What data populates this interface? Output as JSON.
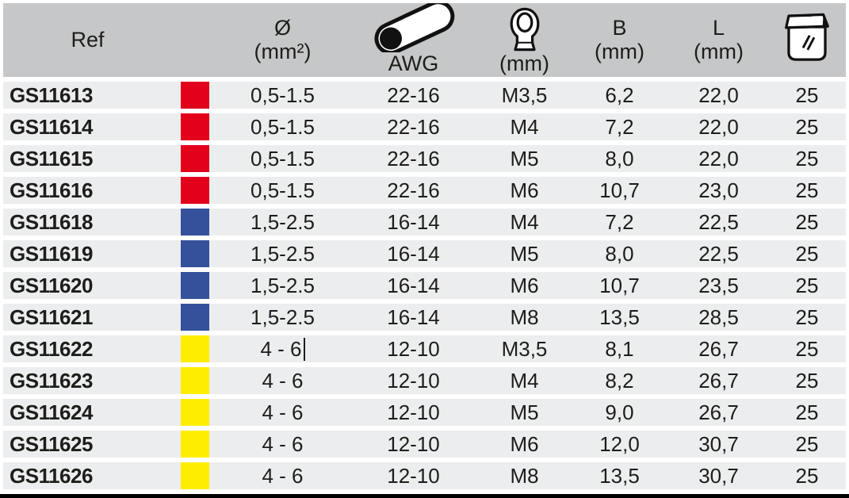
{
  "table": {
    "columns": [
      {
        "key": "ref",
        "label": "Ref"
      },
      {
        "key": "color",
        "label": ""
      },
      {
        "key": "diameter",
        "label_line1": "Ø",
        "label_line2": "(mm²)"
      },
      {
        "key": "awg",
        "icon": "cable-icon",
        "label": "AWG"
      },
      {
        "key": "thread",
        "icon": "ring-terminal-icon",
        "label": "(mm)"
      },
      {
        "key": "b",
        "label_line1": "B",
        "label_line2": "(mm)"
      },
      {
        "key": "l",
        "label_line1": "L",
        "label_line2": "(mm)"
      },
      {
        "key": "qty",
        "icon": "package-icon",
        "label": ""
      }
    ],
    "rows": [
      {
        "ref": "GS11613",
        "color": "red",
        "diameter": "0,5-1.5",
        "awg": "22-16",
        "thread": "M3,5",
        "b": "6,2",
        "l": "22,0",
        "qty": "25"
      },
      {
        "ref": "GS11614",
        "color": "red",
        "diameter": "0,5-1.5",
        "awg": "22-16",
        "thread": "M4",
        "b": "7,2",
        "l": "22,0",
        "qty": "25"
      },
      {
        "ref": "GS11615",
        "color": "red",
        "diameter": "0,5-1.5",
        "awg": "22-16",
        "thread": "M5",
        "b": "8,0",
        "l": "22,0",
        "qty": "25"
      },
      {
        "ref": "GS11616",
        "color": "red",
        "diameter": "0,5-1.5",
        "awg": "22-16",
        "thread": "M6",
        "b": "10,7",
        "l": "23,0",
        "qty": "25"
      },
      {
        "ref": "GS11618",
        "color": "blue",
        "diameter": "1,5-2.5",
        "awg": "16-14",
        "thread": "M4",
        "b": "7,2",
        "l": "22,5",
        "qty": "25"
      },
      {
        "ref": "GS11619",
        "color": "blue",
        "diameter": "1,5-2.5",
        "awg": "16-14",
        "thread": "M5",
        "b": "8,0",
        "l": "22,5",
        "qty": "25"
      },
      {
        "ref": "GS11620",
        "color": "blue",
        "diameter": "1,5-2.5",
        "awg": "16-14",
        "thread": "M6",
        "b": "10,7",
        "l": "23,5",
        "qty": "25"
      },
      {
        "ref": "GS11621",
        "color": "blue",
        "diameter": "1,5-2.5",
        "awg": "16-14",
        "thread": "M8",
        "b": "13,5",
        "l": "28,5",
        "qty": "25"
      },
      {
        "ref": "GS11622",
        "color": "yellow",
        "diameter": "4 - 6",
        "awg": "12-10",
        "thread": "M3,5",
        "b": "8,1",
        "l": "26,7",
        "qty": "25",
        "cursor": true
      },
      {
        "ref": "GS11623",
        "color": "yellow",
        "diameter": "4 - 6",
        "awg": "12-10",
        "thread": "M4",
        "b": "8,2",
        "l": "26,7",
        "qty": "25"
      },
      {
        "ref": "GS11624",
        "color": "yellow",
        "diameter": "4 - 6",
        "awg": "12-10",
        "thread": "M5",
        "b": "9,0",
        "l": "26,7",
        "qty": "25"
      },
      {
        "ref": "GS11625",
        "color": "yellow",
        "diameter": "4 - 6",
        "awg": "12-10",
        "thread": "M6",
        "b": "12,0",
        "l": "30,7",
        "qty": "25"
      },
      {
        "ref": "GS11626",
        "color": "yellow",
        "diameter": "4 - 6",
        "awg": "12-10",
        "thread": "M8",
        "b": "13,5",
        "l": "30,7",
        "qty": "25"
      }
    ]
  },
  "colors": {
    "red": "#e2001a",
    "blue": "#35519c",
    "yellow": "#ffed00",
    "header_bg": "#c6c7c8",
    "row_bg": "#ecedee",
    "text": "#1d1d1b"
  }
}
